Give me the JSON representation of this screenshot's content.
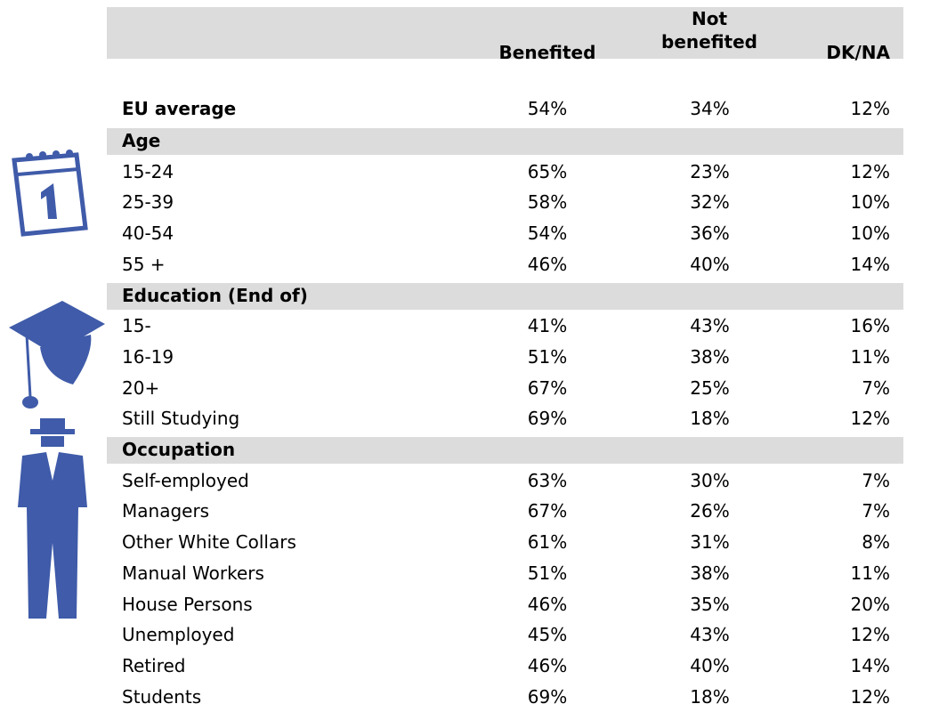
{
  "table": {
    "columns": [
      "Benefited",
      "Not benefited",
      "DK/NA"
    ],
    "summary": {
      "label": "EU average",
      "values": [
        "54%",
        "34%",
        "12%"
      ]
    },
    "sections": [
      {
        "title": "Age",
        "rows": [
          {
            "label": "15-24",
            "values": [
              "65%",
              "23%",
              "12%"
            ]
          },
          {
            "label": "25-39",
            "values": [
              "58%",
              "32%",
              "10%"
            ]
          },
          {
            "label": "40-54",
            "values": [
              "54%",
              "36%",
              "10%"
            ]
          },
          {
            "label": "55 +",
            "values": [
              "46%",
              "40%",
              "14%"
            ]
          }
        ]
      },
      {
        "title": "Education (End of)",
        "rows": [
          {
            "label": "15-",
            "values": [
              "41%",
              "43%",
              "16%"
            ]
          },
          {
            "label": "16-19",
            "values": [
              "51%",
              "38%",
              "11%"
            ]
          },
          {
            "label": "20+",
            "values": [
              "67%",
              "25%",
              "7%"
            ]
          },
          {
            "label": "Still Studying",
            "values": [
              "69%",
              "18%",
              "12%"
            ]
          }
        ]
      },
      {
        "title": "Occupation",
        "rows": [
          {
            "label": "Self-employed",
            "values": [
              "63%",
              "30%",
              "7%"
            ]
          },
          {
            "label": "Managers",
            "values": [
              "67%",
              "26%",
              "7%"
            ]
          },
          {
            "label": "Other White Collars",
            "values": [
              "61%",
              "31%",
              "8%"
            ]
          },
          {
            "label": "Manual Workers",
            "values": [
              "51%",
              "38%",
              "11%"
            ]
          },
          {
            "label": "House Persons",
            "values": [
              "46%",
              "35%",
              "20%"
            ]
          },
          {
            "label": "Unemployed",
            "values": [
              "45%",
              "43%",
              "12%"
            ]
          },
          {
            "label": "Retired",
            "values": [
              "46%",
              "40%",
              "14%"
            ]
          },
          {
            "label": "Students",
            "values": [
              "69%",
              "18%",
              "12%"
            ]
          }
        ]
      }
    ]
  }
}
